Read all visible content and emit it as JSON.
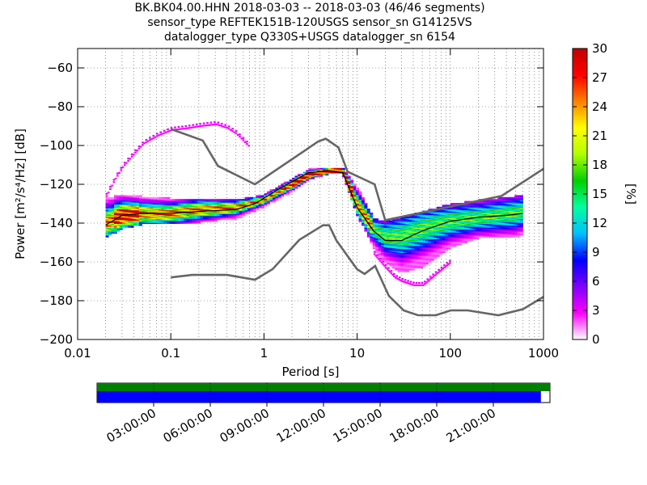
{
  "header": {
    "line1": "BK.BK04.00.HHN   2018-03-03 -- 2018-03-03  (46/46 segments)",
    "line2": "sensor_type REFTEK151B-120USGS sensor_sn G14125VS",
    "line3": "datalogger_type Q330S+USGS datalogger_sn 6154"
  },
  "chart_data": {
    "type": "heatmap",
    "xlabel": "Period [s]",
    "ylabel": "Power [m²/s⁴/Hz] [dB]",
    "x_scale": "log",
    "xlim": [
      0.01,
      1000
    ],
    "ylim": [
      -200,
      -50
    ],
    "x_ticks": [
      "0.01",
      "0.1",
      "1",
      "10",
      "100",
      "1000"
    ],
    "y_ticks": [
      "−60",
      "−80",
      "−100",
      "−120",
      "−140",
      "−160",
      "−180",
      "−200"
    ],
    "y_tick_values": [
      -60,
      -80,
      -100,
      -120,
      -140,
      -160,
      -180,
      -200
    ],
    "colorbar": {
      "label": "[%]",
      "range": [
        0,
        30
      ],
      "ticks": [
        "0",
        "3",
        "6",
        "9",
        "12",
        "15",
        "18",
        "21",
        "24",
        "27",
        "30"
      ],
      "colors": [
        "#ffffff",
        "#ff00ff",
        "#8000ff",
        "#0000ff",
        "#00c0ff",
        "#00ffa0",
        "#00d000",
        "#b0ff00",
        "#ffff00",
        "#ff8000",
        "#ff0000",
        "#c00000"
      ]
    },
    "density_ridge": {
      "period": [
        0.02,
        0.03,
        0.05,
        0.1,
        0.2,
        0.5,
        1,
        2,
        3,
        5,
        7,
        10,
        15,
        20,
        30,
        50,
        100,
        200,
        500,
        600
      ],
      "center_db": [
        -140,
        -136,
        -135,
        -135,
        -133,
        -132,
        -128,
        -120,
        -115,
        -113,
        -113,
        -130,
        -143,
        -147,
        -147,
        -143,
        -139,
        -137,
        -135,
        -134
      ],
      "upper_db": [
        -128,
        -126,
        -127,
        -128,
        -128,
        -129,
        -126,
        -118,
        -113,
        -112,
        -112,
        -122,
        -138,
        -140,
        -138,
        -135,
        -131,
        -129,
        -127,
        -126
      ],
      "lower_db": [
        -147,
        -142,
        -140,
        -140,
        -139,
        -137,
        -131,
        -123,
        -117,
        -114,
        -114,
        -135,
        -152,
        -160,
        -165,
        -162,
        -152,
        -147,
        -147,
        -145
      ]
    },
    "outliers_upper": {
      "period": [
        0.02,
        0.025,
        0.03,
        0.04,
        0.05,
        0.07,
        0.1,
        0.15,
        0.2,
        0.3,
        0.4,
        0.5,
        0.7
      ],
      "db": [
        -126,
        -117,
        -111,
        -104,
        -99,
        -95,
        -92,
        -91,
        -90,
        -89,
        -91,
        -94,
        -101
      ]
    },
    "outliers_lower": {
      "period": [
        15,
        20,
        25,
        30,
        40,
        50,
        70,
        100
      ],
      "db": [
        -156,
        -163,
        -168,
        -170,
        -172,
        -172,
        -166,
        -160
      ]
    },
    "median_curve": {
      "period": [
        0.02,
        0.03,
        0.05,
        0.1,
        0.2,
        0.5,
        0.8,
        1.5,
        3,
        5,
        7,
        10,
        15,
        20,
        30,
        50,
        100,
        200,
        400,
        600
      ],
      "db": [
        -141,
        -136,
        -135,
        -135,
        -134,
        -133,
        -130,
        -122,
        -114,
        -113,
        -114,
        -132,
        -144,
        -149,
        -149,
        -144,
        -139,
        -137,
        -136,
        -135
      ]
    },
    "noise_model_high": {
      "period": [
        0.1,
        0.22,
        0.32,
        0.8,
        3.8,
        4.6,
        6.3,
        7.9,
        15.4,
        20,
        354.8,
        1000
      ],
      "db": [
        -91.5,
        -97.4,
        -110.5,
        -120,
        -98,
        -96.5,
        -101,
        -113.5,
        -120,
        -138.5,
        -126,
        -112
      ]
    },
    "noise_model_low": {
      "period": [
        0.1,
        0.17,
        0.4,
        0.8,
        1.24,
        2.4,
        4.3,
        5,
        6,
        10,
        12,
        15.6,
        21.9,
        31.6,
        45,
        70,
        101,
        154,
        328,
        600,
        1000
      ],
      "db": [
        -168,
        -166.7,
        -166.7,
        -169.2,
        -163.7,
        -148.6,
        -141.1,
        -141.1,
        -149,
        -163.8,
        -166.2,
        -162.1,
        -177.5,
        -185,
        -187.5,
        -187.5,
        -185,
        -185,
        -187.5,
        -184.4,
        -178
      ]
    },
    "timeline": {
      "tick_labels": [
        "03:00:00",
        "06:00:00",
        "09:00:00",
        "12:00:00",
        "15:00:00",
        "18:00:00",
        "21:00:00"
      ],
      "tick_hours": [
        3,
        6,
        9,
        12,
        15,
        18,
        21
      ],
      "range_hours": [
        0,
        24
      ],
      "coverage_fraction": 0.98,
      "colors": {
        "segments": "#008000",
        "coverage": "#0000ff"
      }
    }
  }
}
